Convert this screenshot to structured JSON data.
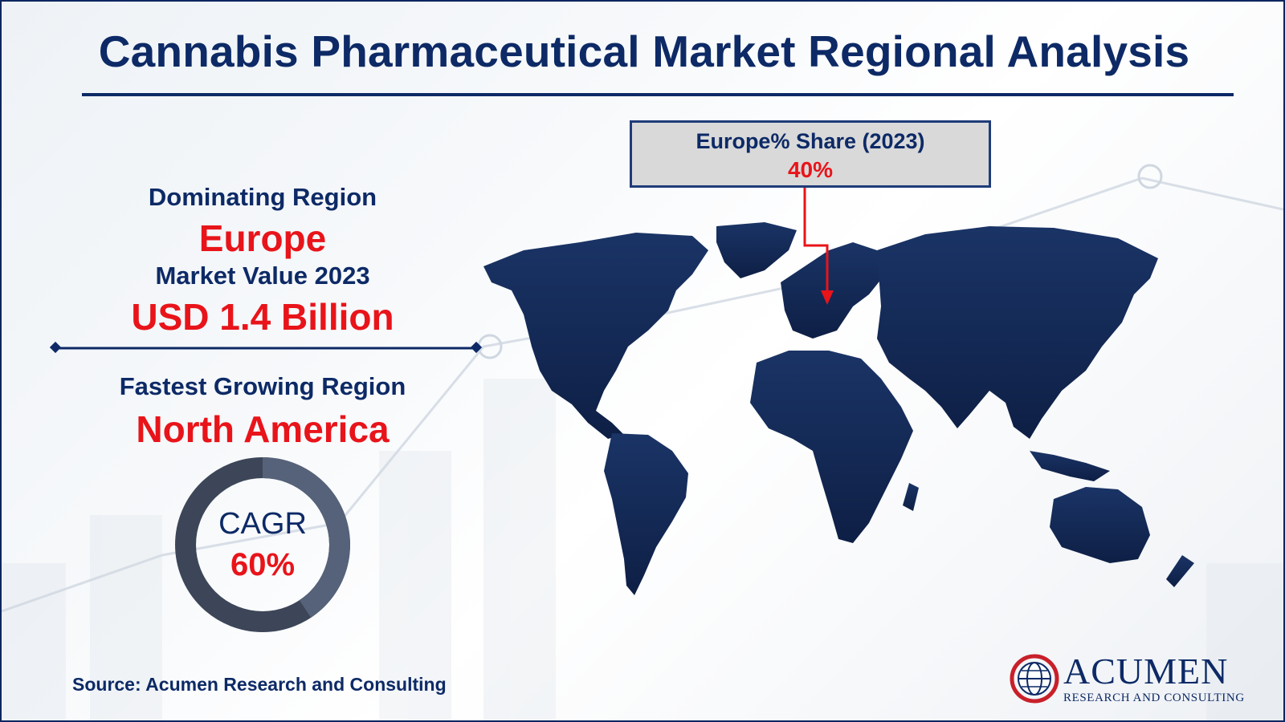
{
  "title": "Cannabis Pharmaceutical Market Regional Analysis",
  "dominating": {
    "label": "Dominating Region",
    "value": "Europe"
  },
  "market_value": {
    "label": "Market Value 2023",
    "value": "USD 1.4 Billion"
  },
  "fastest": {
    "label": "Fastest Growing Region",
    "value": "North America"
  },
  "cagr": {
    "label": "CAGR",
    "value": "60%"
  },
  "callout": {
    "title": "Europe% Share (2023)",
    "value": "40%"
  },
  "source": "Source: Acumen Research and Consulting",
  "logo": {
    "name": "ACUMEN",
    "tagline": "RESEARCH AND CONSULTING"
  },
  "colors": {
    "navy": "#0d2a66",
    "red": "#e8141a",
    "map": "#1a3466"
  },
  "icons": [
    "world-map-icon",
    "globe-logo-icon"
  ]
}
